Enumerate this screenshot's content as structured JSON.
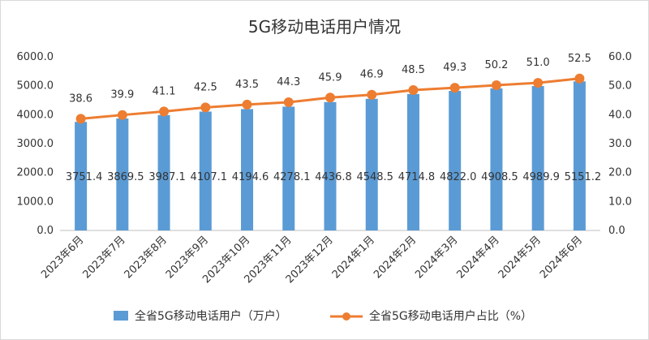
{
  "chart_data": {
    "type": "bar",
    "title": "5G移动电话用户情况",
    "categories": [
      "2023年6月",
      "2023年7月",
      "2023年8月",
      "2023年9月",
      "2023年10月",
      "2023年11月",
      "2023年12月",
      "2024年1月",
      "2024年2月",
      "2024年3月",
      "2024年4月",
      "2024年5月",
      "2024年6月"
    ],
    "y_ticks": [
      "0.0",
      "1000.0",
      "2000.0",
      "3000.0",
      "4000.0",
      "5000.0",
      "6000.0"
    ],
    "y2_ticks": [
      "0.0",
      "10.0",
      "20.0",
      "30.0",
      "40.0",
      "50.0",
      "60.0"
    ],
    "ylim": [
      0,
      6000
    ],
    "y2lim": [
      0,
      60
    ],
    "grid": false,
    "legend_position": "bottom",
    "series": [
      {
        "name": "全省5G移动电话用户（万户）",
        "type": "bar",
        "axis": "left",
        "color": "#5b9bd5",
        "values": [
          3751.4,
          3869.5,
          3987.1,
          4107.1,
          4194.6,
          4278.1,
          4436.8,
          4548.5,
          4714.8,
          4822.0,
          4908.5,
          4989.9,
          5151.2
        ],
        "labels": [
          "3751.4",
          "3869.5",
          "3987.1",
          "4107.1",
          "4194.6",
          "4278.1",
          "4436.8",
          "4548.5",
          "4714.8",
          "4822.0",
          "4908.5",
          "4989.9",
          "5151.2"
        ]
      },
      {
        "name": "全省5G移动电话用户占比（%）",
        "type": "line",
        "axis": "right",
        "color": "#ed7d31",
        "values": [
          38.6,
          39.9,
          41.1,
          42.5,
          43.5,
          44.3,
          45.9,
          46.9,
          48.5,
          49.3,
          50.2,
          51.0,
          52.5
        ],
        "labels": [
          "38.6",
          "39.9",
          "41.1",
          "42.5",
          "43.5",
          "44.3",
          "45.9",
          "46.9",
          "48.5",
          "49.3",
          "50.2",
          "51.0",
          "52.5"
        ]
      }
    ]
  }
}
